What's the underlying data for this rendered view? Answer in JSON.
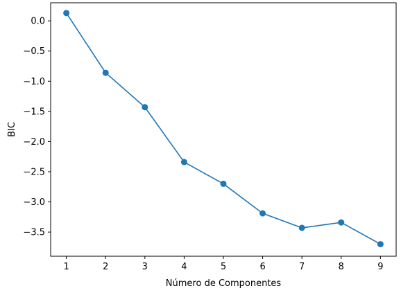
{
  "chart_data": {
    "type": "line",
    "title": "",
    "xlabel": "Número de Componentes",
    "ylabel": "BIC",
    "x": [
      1,
      2,
      3,
      4,
      5,
      6,
      7,
      8,
      9
    ],
    "series": [
      {
        "values": [
          0.13,
          -0.86,
          -1.43,
          -2.34,
          -2.7,
          -3.19,
          -3.43,
          -3.34,
          -3.7
        ],
        "color": "#1f77b4",
        "marker": "circle"
      }
    ],
    "xlim": [
      0.6,
      9.4
    ],
    "ylim": [
      -3.9,
      0.3
    ],
    "xticks": [
      1,
      2,
      3,
      4,
      5,
      6,
      7,
      8,
      9
    ],
    "xtick_labels": [
      "1",
      "2",
      "3",
      "4",
      "5",
      "6",
      "7",
      "8",
      "9"
    ],
    "yticks": [
      0.0,
      -0.5,
      -1.0,
      -1.5,
      -2.0,
      -2.5,
      -3.0,
      -3.5
    ],
    "ytick_labels": [
      "0.0",
      "−0.5",
      "−1.0",
      "−1.5",
      "−2.0",
      "−2.5",
      "−3.0",
      "−3.5"
    ],
    "grid": false,
    "legend": "none"
  }
}
